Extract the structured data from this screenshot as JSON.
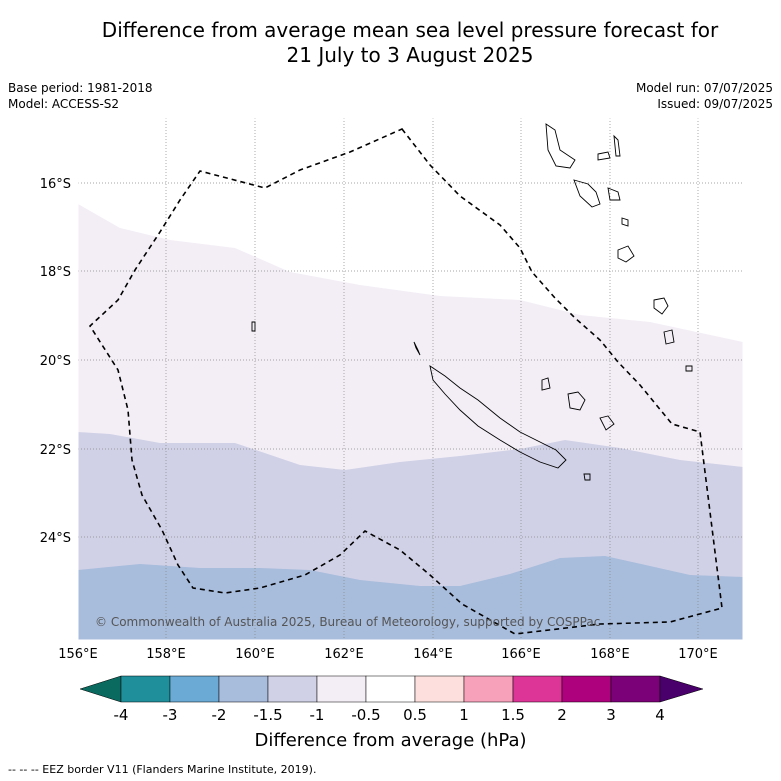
{
  "title_line1": "Difference from average mean sea level pressure forecast for",
  "title_line2": "21 July to 3 August 2025",
  "base_period": "Base period: 1981-2018",
  "model": "Model: ACCESS-S2",
  "model_run": "Model run: 07/07/2025",
  "issued": "Issued: 09/07/2025",
  "copyright": "© Commonwealth of Australia 2025, Bureau of Meteorology, supported by COSPPac",
  "lat_labels": [
    "16°S",
    "18°S",
    "20°S",
    "22°S",
    "24°S"
  ],
  "lon_labels": [
    "156°E",
    "158°E",
    "160°E",
    "162°E",
    "164°E",
    "166°E",
    "168°E",
    "170°E"
  ],
  "colorbar": {
    "ticks": [
      "-4",
      "-3",
      "-2",
      "-1.5",
      "-1",
      "-0.5",
      "0.5",
      "1",
      "1.5",
      "2",
      "3",
      "4"
    ],
    "colors": {
      "lt_-4": "#0b6a60",
      "-4_-3": "#1f8f9c",
      "-3_-2": "#6aaad4",
      "-2_-1.5": "#a8bcdc",
      "-1.5_-1": "#d0d1e6",
      "-1_-0.5": "#f3eef6",
      "-0.5_0.5": "#ffffff",
      "0.5_1": "#fde0dd",
      "1_1.5": "#f7a1bb",
      "1.5_2": "#dd3497",
      "2_3": "#ae017e",
      "3_4": "#7a0177",
      "gt_4": "#49006a"
    },
    "label": "Difference from average (hPa)"
  },
  "footnote": "-- -- -- EEZ border V11 (Flanders Marine Institute, 2019)."
}
